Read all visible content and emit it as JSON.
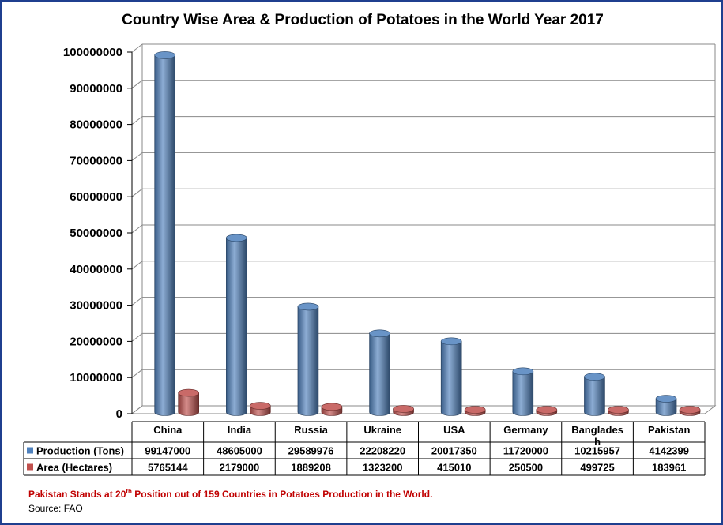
{
  "chart_data": {
    "type": "bar",
    "title": "Country Wise Area & Production of Potatoes in the World Year 2017",
    "categories": [
      "China",
      "India",
      "Russia",
      "Ukraine",
      "USA",
      "Germany",
      "Banglades h",
      "Pakistan"
    ],
    "category_lines": [
      [
        "China"
      ],
      [
        "India"
      ],
      [
        "Russia"
      ],
      [
        "Ukraine"
      ],
      [
        "USA"
      ],
      [
        "Germany"
      ],
      [
        "Banglades",
        "h"
      ],
      [
        "Pakistan"
      ]
    ],
    "series": [
      {
        "name": "Production (Tons)",
        "color": "#4f81bd",
        "values": [
          99147000,
          48605000,
          29589976,
          22208220,
          20017350,
          11720000,
          10215957,
          4142399
        ]
      },
      {
        "name": "Area (Hectares)",
        "color": "#c0504d",
        "values": [
          5765144,
          2179000,
          1889208,
          1323200,
          415010,
          250500,
          499725,
          183961
        ]
      }
    ],
    "ylim": [
      0,
      100000000
    ],
    "yticks": [
      0,
      10000000,
      20000000,
      30000000,
      40000000,
      50000000,
      60000000,
      70000000,
      80000000,
      90000000,
      100000000
    ],
    "grid": true,
    "legend": "data-table"
  },
  "footnote": {
    "pre": "Pakistan Stands at 20",
    "sup": "th",
    "post": " Position out of 159 Countries in Potatoes Production in the World."
  },
  "source": "Source: FAO"
}
